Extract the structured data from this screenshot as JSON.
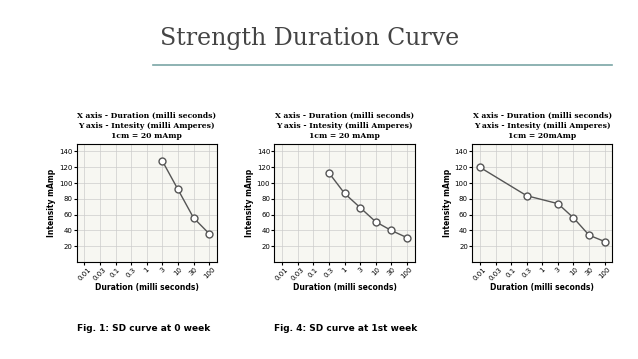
{
  "title": "Strength Duration Curve",
  "chart_data": [
    {
      "type": "line",
      "caption": "Fig. 1: SD curve at 0 week",
      "annotations": [
        "X axis - Duration (milli seconds)",
        "Y axis - Intesity (milli Amperes)",
        "1cm = 20 mAmp"
      ],
      "xlabel": "Duration (milli seconds)",
      "ylabel": "Intensity mAmp",
      "categories": [
        "0.01",
        "0.03",
        "0.1",
        "0.3",
        "1",
        "3",
        "10",
        "30",
        "100"
      ],
      "values": [
        null,
        null,
        null,
        null,
        null,
        128,
        92,
        56,
        36
      ],
      "ylim": [
        0,
        150
      ],
      "yticks": [
        20,
        40,
        60,
        80,
        100,
        120,
        140
      ],
      "grid": true,
      "color": "#555555",
      "marker": "circle",
      "line_style": "solid"
    },
    {
      "type": "line",
      "caption": "Fig. 4: SD curve at 1st week",
      "annotations": [
        "X axis - Duration (milli seconds)",
        "Y axis - Intesity (milli Amperes)",
        "1cm = 20 mAmp"
      ],
      "xlabel": "Duration (milli seconds)",
      "ylabel": "Intensity mAmp",
      "categories": [
        "0.01",
        "0.03",
        "0.1",
        "0.3",
        "1",
        "3",
        "10",
        "30",
        "100"
      ],
      "values": [
        null,
        null,
        null,
        113,
        87,
        69,
        51,
        40,
        31
      ],
      "ylim": [
        0,
        150
      ],
      "yticks": [
        20,
        40,
        60,
        80,
        100,
        120,
        140
      ],
      "grid": true,
      "color": "#555555",
      "marker": "circle",
      "line_style": "solid"
    },
    {
      "type": "line",
      "annotations": [
        "X axis - Duration (milli seconds)",
        "Y axis - Intesity (milli Amperes)",
        "1cm = 20mAmp"
      ],
      "xlabel": "Duration (milli seconds)",
      "ylabel": "Intensity mAmp",
      "categories": [
        "0.01",
        "0.03",
        "0.1",
        "0.3",
        "1",
        "3",
        "10",
        "30",
        "100"
      ],
      "values": [
        120,
        null,
        null,
        84,
        null,
        74,
        56,
        34,
        26
      ],
      "ylim": [
        0,
        150
      ],
      "yticks": [
        20,
        40,
        60,
        80,
        100,
        120,
        140
      ],
      "grid": true,
      "color": "#555555",
      "marker": "circle",
      "line_style": "solid"
    }
  ]
}
